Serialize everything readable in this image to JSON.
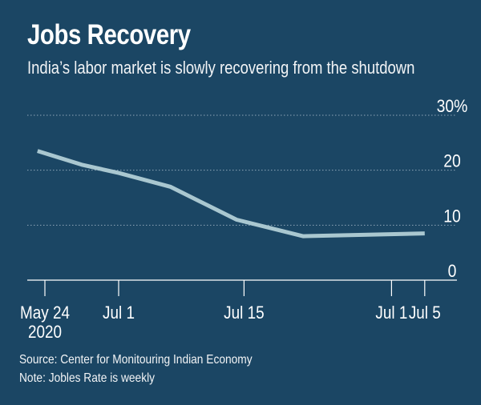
{
  "header": {
    "title": "Jobs Recovery",
    "subtitle": "India’s labor market is slowly recovering from the shutdown"
  },
  "footer": {
    "source": "Source: Center for Monitouring Indian Economy",
    "note": "Note: Jobles Rate is weekly"
  },
  "colors": {
    "background": "#1b4664",
    "line": "#a9c7d0",
    "grid": "#8fa6b8"
  },
  "chart_data": {
    "type": "line",
    "title": "Jobs Recovery",
    "subtitle": "India’s labor market is slowly recovering from the shutdown",
    "xlabel": "",
    "ylabel": "",
    "ylim": [
      0,
      30
    ],
    "y_ticks": [
      {
        "value": 30,
        "label": "30%"
      },
      {
        "value": 20,
        "label": "20"
      },
      {
        "value": 10,
        "label": "10"
      },
      {
        "value": 0,
        "label": "0"
      }
    ],
    "x_ticks": [
      {
        "week": 0,
        "label": "May 24",
        "sublabel": "2020"
      },
      {
        "week": 1,
        "label": "Jul 1",
        "sublabel": ""
      },
      {
        "week": 2.7,
        "label": "Jul 15",
        "sublabel": ""
      },
      {
        "week": 4.7,
        "label": "Jul 1",
        "sublabel": ""
      },
      {
        "week": 5.15,
        "label": "Jul 5",
        "sublabel": ""
      }
    ],
    "grid": true,
    "series": [
      {
        "points": [
          {
            "x": -0.1,
            "y": 23.5
          },
          {
            "x": 0.5,
            "y": 21.0
          },
          {
            "x": 1.0,
            "y": 19.5
          },
          {
            "x": 1.7,
            "y": 17.0
          },
          {
            "x": 2.6,
            "y": 11.0
          },
          {
            "x": 3.5,
            "y": 8.0
          },
          {
            "x": 5.15,
            "y": 8.5
          }
        ]
      }
    ]
  }
}
